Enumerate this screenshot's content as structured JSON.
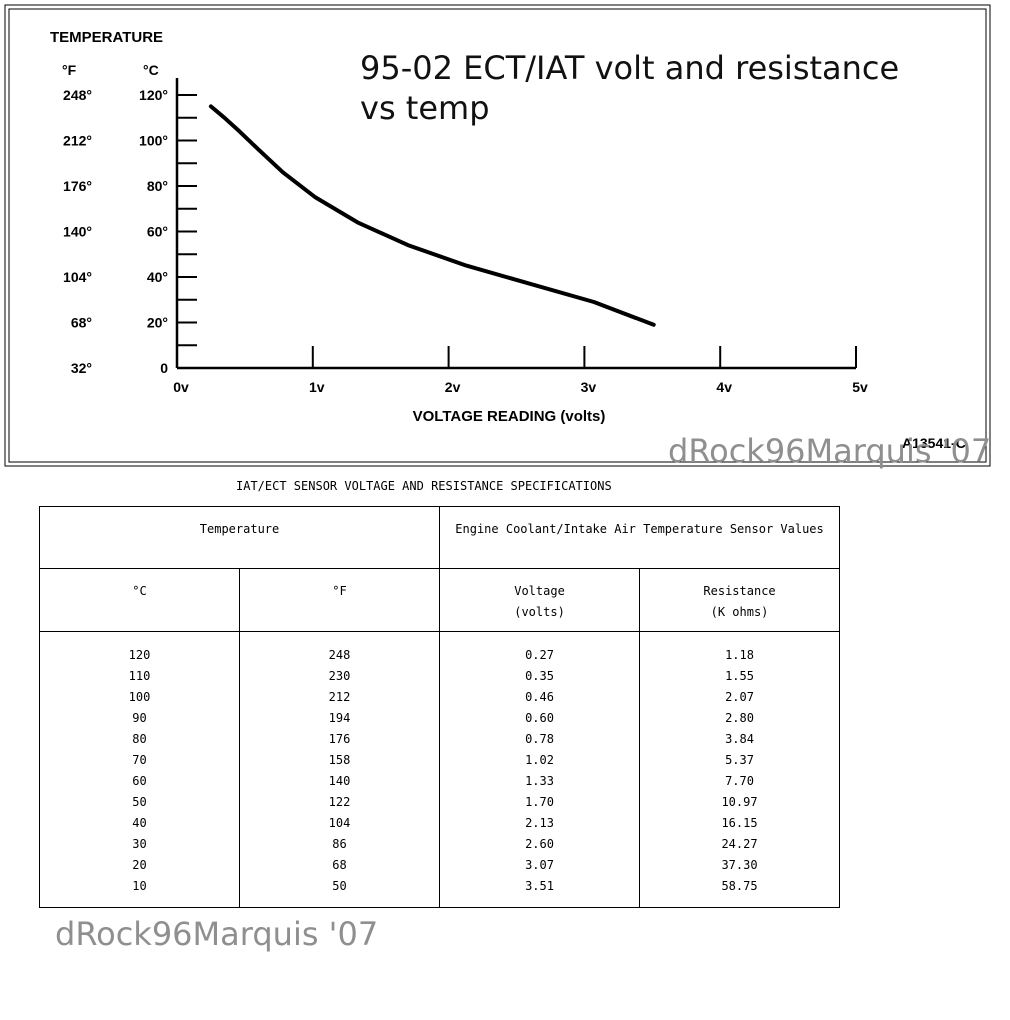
{
  "chart_data": {
    "type": "line",
    "title": "95-02 ECT/IAT volt and resistance vs temp",
    "ylabel_top": "TEMPERATURE",
    "unit_f": "°F",
    "unit_c": "°C",
    "xlabel": "VOLTAGE READING (volts)",
    "figure_id": "A13541-C",
    "watermark": "dRock96Marquis '07",
    "x_ticks": [
      "0v",
      "1v",
      "2v",
      "3v",
      "4v",
      "5v"
    ],
    "x_range": [
      0,
      5
    ],
    "y_range": [
      0,
      120
    ],
    "y_ticks": [
      {
        "c": "120°",
        "f": "248°",
        "value": 120
      },
      {
        "c": "100°",
        "f": "212°",
        "value": 100
      },
      {
        "c": "80°",
        "f": "176°",
        "value": 80
      },
      {
        "c": "60°",
        "f": "140°",
        "value": 60
      },
      {
        "c": "40°",
        "f": "104°",
        "value": 40
      },
      {
        "c": "20°",
        "f": "68°",
        "value": 20
      },
      {
        "c": "0",
        "f": "32°",
        "value": 0
      }
    ],
    "series": [
      {
        "x": [
          0.25,
          0.35,
          0.46,
          0.6,
          0.78,
          1.02,
          1.33,
          1.7,
          2.13,
          2.6,
          3.07,
          3.51
        ],
        "y": [
          115,
          110,
          104,
          96,
          86,
          75,
          64,
          54,
          45,
          37,
          29,
          19
        ]
      }
    ]
  },
  "table": {
    "title": "IAT/ECT SENSOR VOLTAGE AND RESISTANCE SPECIFICATIONS",
    "group_headers": [
      "Temperature",
      "Engine Coolant/Intake Air Temperature Sensor Values"
    ],
    "col_headers": [
      {
        "line1": "°C",
        "line2": ""
      },
      {
        "line1": "°F",
        "line2": ""
      },
      {
        "line1": "Voltage",
        "line2": "(volts)"
      },
      {
        "line1": "Resistance",
        "line2": "(K ohms)"
      }
    ],
    "rows": [
      [
        "120",
        "248",
        "0.27",
        "1.18"
      ],
      [
        "110",
        "230",
        "0.35",
        "1.55"
      ],
      [
        "100",
        "212",
        "0.46",
        "2.07"
      ],
      [
        "90",
        "194",
        "0.60",
        "2.80"
      ],
      [
        "80",
        "176",
        "0.78",
        "3.84"
      ],
      [
        "70",
        "158",
        "1.02",
        "5.37"
      ],
      [
        "60",
        "140",
        "1.33",
        "7.70"
      ],
      [
        "50",
        "122",
        "1.70",
        "10.97"
      ],
      [
        "40",
        "104",
        "2.13",
        "16.15"
      ],
      [
        "30",
        "86",
        "2.60",
        "24.27"
      ],
      [
        "20",
        "68",
        "3.07",
        "37.30"
      ],
      [
        "10",
        "50",
        "3.51",
        "58.75"
      ]
    ],
    "watermark": "dRock96Marquis '07"
  }
}
